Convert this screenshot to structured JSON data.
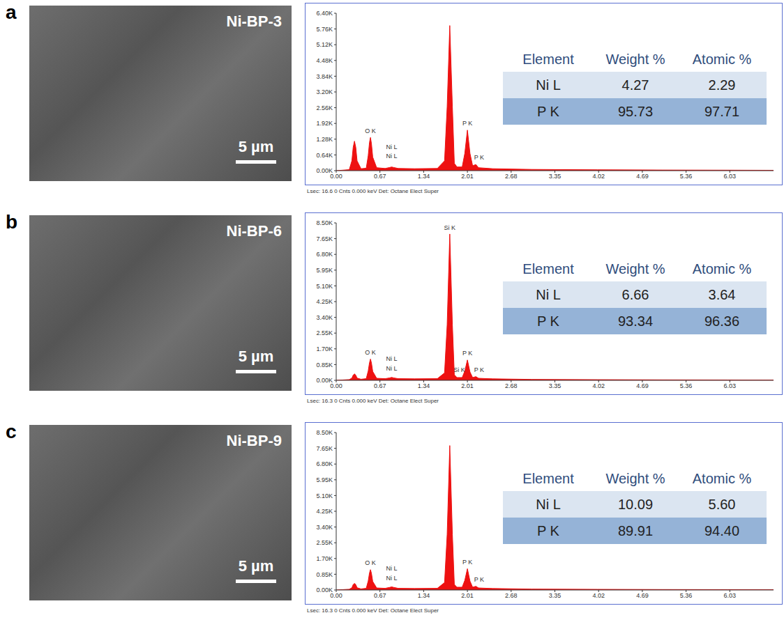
{
  "chart_data": [
    {
      "type": "area",
      "panel_label": "a",
      "image": {
        "label": "Ni-BP-3",
        "scale_bar": "5 µm"
      },
      "x": [
        0,
        0.1,
        0.2,
        0.24,
        0.26,
        0.28,
        0.3,
        0.32,
        0.38,
        0.46,
        0.49,
        0.51,
        0.525,
        0.54,
        0.56,
        0.62,
        0.75,
        0.82,
        0.85,
        0.88,
        0.95,
        1.2,
        1.55,
        1.66,
        1.7,
        1.74,
        1.78,
        1.81,
        1.85,
        1.93,
        1.97,
        2.01,
        2.05,
        2.09,
        2.14,
        2.18,
        2.4,
        3,
        4,
        5,
        6,
        6.7
      ],
      "values": [
        0,
        20,
        40,
        400,
        950,
        1200,
        950,
        400,
        80,
        100,
        600,
        1150,
        1350,
        1100,
        550,
        120,
        90,
        130,
        150,
        130,
        90,
        80,
        90,
        400,
        2600,
        5900,
        2600,
        300,
        150,
        150,
        700,
        1650,
        700,
        200,
        250,
        120,
        80,
        50,
        35,
        25,
        20,
        15
      ],
      "color": "#ee1111",
      "xlim": [
        0,
        6.7
      ],
      "xticks": [
        {
          "value": 0,
          "label": "0.00"
        },
        0.67,
        1.34,
        2.01,
        2.68,
        3.35,
        4.02,
        4.69,
        5.36,
        6.03
      ],
      "ylim": [
        0,
        6400
      ],
      "yticks": [
        {
          "value": 0,
          "label": "0.00K"
        },
        {
          "value": 640,
          "label": "0.64K"
        },
        {
          "value": 1280,
          "label": "1.28K"
        },
        {
          "value": 1920,
          "label": "1.92K"
        },
        {
          "value": 2560,
          "label": "2.56K"
        },
        {
          "value": 3200,
          "label": "3.20K"
        },
        {
          "value": 3840,
          "label": "3.84K"
        },
        {
          "value": 4480,
          "label": "4.48K"
        },
        {
          "value": 5120,
          "label": "5.12K"
        },
        {
          "value": 5760,
          "label": "5.76K"
        },
        {
          "value": 6400,
          "label": "6.40K"
        }
      ],
      "annotations": [
        {
          "text": "O K",
          "x": 0.525,
          "y": 1400
        },
        {
          "text": "Ni L",
          "x": 0.85,
          "y": 750
        },
        {
          "text": "Ni L",
          "x": 0.85,
          "y": 380
        },
        {
          "text": "P K",
          "x": 2.01,
          "y": 1700
        },
        {
          "text": "P K",
          "x": 2.19,
          "y": 320
        }
      ],
      "table": {
        "columns": [
          "Element",
          "Weight %",
          "Atomic %"
        ],
        "rows": [
          [
            "Ni L",
            "4.27",
            "2.29"
          ],
          [
            "P K",
            "95.73",
            "97.71"
          ]
        ]
      },
      "footer": "Lsec: 16.6 0 Cnts 0.000 keV Det: Octane Elect Super"
    },
    {
      "type": "area",
      "panel_label": "b",
      "image": {
        "label": "Ni-BP-6",
        "scale_bar": "5 µm"
      },
      "x": [
        0,
        0.1,
        0.2,
        0.24,
        0.26,
        0.28,
        0.3,
        0.32,
        0.38,
        0.46,
        0.49,
        0.51,
        0.525,
        0.54,
        0.56,
        0.62,
        0.75,
        0.82,
        0.85,
        0.88,
        0.95,
        1.2,
        1.55,
        1.66,
        1.7,
        1.74,
        1.78,
        1.81,
        1.85,
        1.93,
        1.97,
        2.01,
        2.05,
        2.09,
        2.14,
        2.18,
        2.4,
        3,
        4,
        5,
        6,
        6.7
      ],
      "values": [
        0,
        20,
        40,
        120,
        280,
        350,
        280,
        120,
        60,
        90,
        500,
        950,
        1150,
        940,
        480,
        110,
        90,
        130,
        160,
        130,
        90,
        80,
        90,
        400,
        3000,
        7900,
        3000,
        300,
        150,
        150,
        500,
        1100,
        450,
        150,
        200,
        110,
        80,
        50,
        35,
        25,
        20,
        15
      ],
      "color": "#ee1111",
      "xlim": [
        0,
        6.7
      ],
      "xticks": [
        {
          "value": 0,
          "label": "0.00"
        },
        0.67,
        1.34,
        2.01,
        2.68,
        3.35,
        4.02,
        4.69,
        5.36,
        6.03
      ],
      "ylim": [
        0,
        8500
      ],
      "yticks": [
        {
          "value": 0,
          "label": "0.00K"
        },
        {
          "value": 850,
          "label": "0.85K"
        },
        {
          "value": 1700,
          "label": "1.70K"
        },
        {
          "value": 2550,
          "label": "2.55K"
        },
        {
          "value": 3400,
          "label": "3.40K"
        },
        {
          "value": 4250,
          "label": "4.25K"
        },
        {
          "value": 5100,
          "label": "5.10K"
        },
        {
          "value": 5950,
          "label": "5.95K"
        },
        {
          "value": 6800,
          "label": "6.80K"
        },
        {
          "value": 7650,
          "label": "7.65K"
        },
        {
          "value": 8500,
          "label": "8.50K"
        }
      ],
      "annotations": [
        {
          "text": "O K",
          "x": 0.525,
          "y": 1200
        },
        {
          "text": "Ni L",
          "x": 0.85,
          "y": 850
        },
        {
          "text": "Ni L",
          "x": 0.85,
          "y": 350
        },
        {
          "text": "Si K",
          "x": 1.74,
          "y": 7950
        },
        {
          "text": "Si K",
          "x": 1.885,
          "y": 250
        },
        {
          "text": "P K",
          "x": 2.01,
          "y": 1150
        },
        {
          "text": "P K",
          "x": 2.19,
          "y": 250
        }
      ],
      "table": {
        "columns": [
          "Element",
          "Weight %",
          "Atomic %"
        ],
        "rows": [
          [
            "Ni L",
            "6.66",
            "3.64"
          ],
          [
            "P K",
            "93.34",
            "96.36"
          ]
        ]
      },
      "footer": "Lsec: 16.3 0 Cnts 0.000 keV Det: Octane Elect Super"
    },
    {
      "type": "area",
      "panel_label": "c",
      "image": {
        "label": "Ni-BP-9",
        "scale_bar": "5 µm"
      },
      "x": [
        0,
        0.1,
        0.2,
        0.24,
        0.26,
        0.28,
        0.3,
        0.32,
        0.38,
        0.46,
        0.49,
        0.51,
        0.525,
        0.54,
        0.56,
        0.62,
        0.75,
        0.82,
        0.85,
        0.88,
        0.95,
        1.2,
        1.55,
        1.66,
        1.7,
        1.74,
        1.78,
        1.81,
        1.85,
        1.93,
        1.97,
        2.01,
        2.05,
        2.09,
        2.14,
        2.18,
        2.4,
        3,
        4,
        5,
        6,
        6.7
      ],
      "values": [
        0,
        20,
        40,
        120,
        290,
        360,
        290,
        120,
        60,
        90,
        480,
        920,
        1100,
        900,
        460,
        110,
        90,
        140,
        170,
        140,
        90,
        80,
        90,
        400,
        3000,
        7800,
        3000,
        300,
        150,
        150,
        520,
        1150,
        480,
        150,
        200,
        110,
        80,
        50,
        35,
        25,
        20,
        15
      ],
      "color": "#ee1111",
      "xlim": [
        0,
        6.7
      ],
      "xticks": [
        {
          "value": 0,
          "label": "0.00"
        },
        0.67,
        1.34,
        2.01,
        2.68,
        3.35,
        4.02,
        4.69,
        5.36,
        6.03
      ],
      "ylim": [
        0,
        8500
      ],
      "yticks": [
        {
          "value": 0,
          "label": "0.00K"
        },
        {
          "value": 850,
          "label": "0.85K"
        },
        {
          "value": 1700,
          "label": "1.70K"
        },
        {
          "value": 2550,
          "label": "2.55K"
        },
        {
          "value": 3400,
          "label": "3.40K"
        },
        {
          "value": 4250,
          "label": "4.25K"
        },
        {
          "value": 5100,
          "label": "5.10K"
        },
        {
          "value": 5950,
          "label": "5.95K"
        },
        {
          "value": 6800,
          "label": "6.80K"
        },
        {
          "value": 7650,
          "label": "7.65K"
        },
        {
          "value": 8500,
          "label": "8.50K"
        }
      ],
      "annotations": [
        {
          "text": "O K",
          "x": 0.525,
          "y": 1150
        },
        {
          "text": "Ni L",
          "x": 0.85,
          "y": 850
        },
        {
          "text": "Ni L",
          "x": 0.85,
          "y": 350
        },
        {
          "text": "P K",
          "x": 2.01,
          "y": 1200
        },
        {
          "text": "P K",
          "x": 2.19,
          "y": 250
        }
      ],
      "table": {
        "columns": [
          "Element",
          "Weight %",
          "Atomic %"
        ],
        "rows": [
          [
            "Ni L",
            "10.09",
            "5.60"
          ],
          [
            "P K",
            "89.91",
            "94.40"
          ]
        ]
      },
      "footer": "Lsec: 16.3 0 Cnts 0.000 keV Det: Octane Elect Super"
    }
  ]
}
